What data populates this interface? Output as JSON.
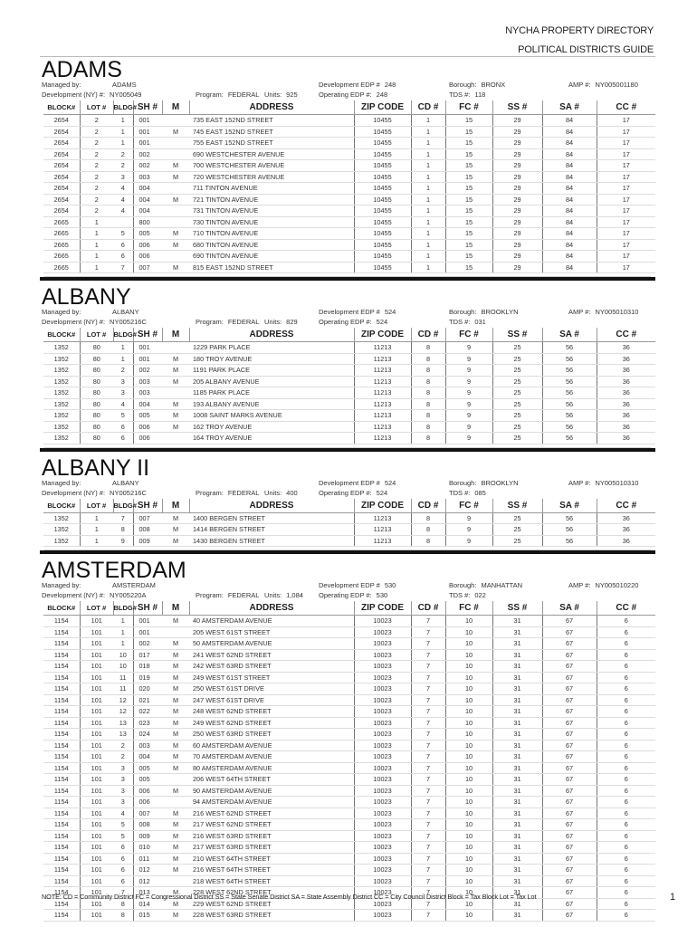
{
  "header": {
    "line1": "NYCHA PROPERTY DIRECTORY",
    "line2": "POLITICAL DISTRICTS GUIDE"
  },
  "labels": {
    "managed_by": "Managed by:",
    "dev_ny": "Development (NY) #:",
    "program": "Program:",
    "units": "Units:",
    "dev_edp": "Development EDP #",
    "op_edp": "Operating EDP #:",
    "borough": "Borough:",
    "tds": "TDS #:",
    "amp": "AMP #:"
  },
  "columns": [
    "BLOCK#",
    "LOT #",
    "BLDG#",
    "SH #",
    "M",
    "ADDRESS",
    "ZIP CODE",
    "CD #",
    "FC #",
    "SS #",
    "SA #",
    "CC #"
  ],
  "sections": [
    {
      "name": "ADAMS",
      "managed_by": "ADAMS",
      "dev_ny": "NY005049",
      "program": "FEDERAL",
      "units": "925",
      "dev_edp": "248",
      "op_edp": "248",
      "borough": "BRONX",
      "tds": "118",
      "amp": "NY005001180",
      "rows": [
        [
          "2654",
          "2",
          "1",
          "001",
          "",
          "735 EAST 152ND STREET",
          "10455",
          "1",
          "15",
          "29",
          "84",
          "17"
        ],
        [
          "2654",
          "2",
          "1",
          "001",
          "M",
          "745 EAST 152ND STREET",
          "10455",
          "1",
          "15",
          "29",
          "84",
          "17"
        ],
        [
          "2654",
          "2",
          "1",
          "001",
          "",
          "755 EAST 152ND STREET",
          "10455",
          "1",
          "15",
          "29",
          "84",
          "17"
        ],
        [
          "2654",
          "2",
          "2",
          "002",
          "",
          "690 WESTCHESTER AVENUE",
          "10455",
          "1",
          "15",
          "29",
          "84",
          "17"
        ],
        [
          "2654",
          "2",
          "2",
          "002",
          "M",
          "700 WESTCHESTER AVENUE",
          "10455",
          "1",
          "15",
          "29",
          "84",
          "17"
        ],
        [
          "2654",
          "2",
          "3",
          "003",
          "M",
          "720 WESTCHESTER AVENUE",
          "10455",
          "1",
          "15",
          "29",
          "84",
          "17"
        ],
        [
          "2654",
          "2",
          "4",
          "004",
          "",
          "711 TINTON AVENUE",
          "10455",
          "1",
          "15",
          "29",
          "84",
          "17"
        ],
        [
          "2654",
          "2",
          "4",
          "004",
          "M",
          "721 TINTON AVENUE",
          "10455",
          "1",
          "15",
          "29",
          "84",
          "17"
        ],
        [
          "2654",
          "2",
          "4",
          "004",
          "",
          "731 TINTON AVENUE",
          "10455",
          "1",
          "15",
          "29",
          "84",
          "17"
        ],
        [
          "2665",
          "1",
          "",
          "800",
          "",
          "730 TINTON AVENUE",
          "10455",
          "1",
          "15",
          "29",
          "84",
          "17"
        ],
        [
          "2665",
          "1",
          "5",
          "005",
          "M",
          "710 TINTON AVENUE",
          "10455",
          "1",
          "15",
          "29",
          "84",
          "17"
        ],
        [
          "2665",
          "1",
          "6",
          "006",
          "M",
          "680 TINTON AVENUE",
          "10455",
          "1",
          "15",
          "29",
          "84",
          "17"
        ],
        [
          "2665",
          "1",
          "6",
          "006",
          "",
          "690 TINTON AVENUE",
          "10455",
          "1",
          "15",
          "29",
          "84",
          "17"
        ],
        [
          "2665",
          "1",
          "7",
          "007",
          "M",
          "815 EAST 152ND STREET",
          "10455",
          "1",
          "15",
          "29",
          "84",
          "17"
        ]
      ]
    },
    {
      "name": "ALBANY",
      "managed_by": "ALBANY",
      "dev_ny": "NY005216C",
      "program": "FEDERAL",
      "units": "829",
      "dev_edp": "524",
      "op_edp": "524",
      "borough": "BROOKLYN",
      "tds": "031",
      "amp": "NY005010310",
      "rows": [
        [
          "1352",
          "80",
          "1",
          "001",
          "",
          "1229 PARK PLACE",
          "11213",
          "8",
          "9",
          "25",
          "56",
          "36"
        ],
        [
          "1352",
          "80",
          "1",
          "001",
          "M",
          "180 TROY AVENUE",
          "11213",
          "8",
          "9",
          "25",
          "56",
          "36"
        ],
        [
          "1352",
          "80",
          "2",
          "002",
          "M",
          "1191 PARK PLACE",
          "11213",
          "8",
          "9",
          "25",
          "56",
          "36"
        ],
        [
          "1352",
          "80",
          "3",
          "003",
          "M",
          "205 ALBANY AVENUE",
          "11213",
          "8",
          "9",
          "25",
          "56",
          "36"
        ],
        [
          "1352",
          "80",
          "3",
          "003",
          "",
          "1185 PARK PLACE",
          "11213",
          "8",
          "9",
          "25",
          "56",
          "36"
        ],
        [
          "1352",
          "80",
          "4",
          "004",
          "M",
          "193 ALBANY AVENUE",
          "11213",
          "8",
          "9",
          "25",
          "56",
          "36"
        ],
        [
          "1352",
          "80",
          "5",
          "005",
          "M",
          "1008 SAINT MARKS AVENUE",
          "11213",
          "8",
          "9",
          "25",
          "56",
          "36"
        ],
        [
          "1352",
          "80",
          "6",
          "006",
          "M",
          "162 TROY AVENUE",
          "11213",
          "8",
          "9",
          "25",
          "56",
          "36"
        ],
        [
          "1352",
          "80",
          "6",
          "006",
          "",
          "164 TROY AVENUE",
          "11213",
          "8",
          "9",
          "25",
          "56",
          "36"
        ]
      ]
    },
    {
      "name": "ALBANY II",
      "managed_by": "ALBANY",
      "dev_ny": "NY005216C",
      "program": "FEDERAL",
      "units": "400",
      "dev_edp": "524",
      "op_edp": "524",
      "borough": "BROOKLYN",
      "tds": "085",
      "amp": "NY005010310",
      "rows": [
        [
          "1352",
          "1",
          "7",
          "007",
          "M",
          "1400 BERGEN STREET",
          "11213",
          "8",
          "9",
          "25",
          "56",
          "36"
        ],
        [
          "1352",
          "1",
          "8",
          "008",
          "M",
          "1414 BERGEN STREET",
          "11213",
          "8",
          "9",
          "25",
          "56",
          "36"
        ],
        [
          "1352",
          "1",
          "9",
          "009",
          "M",
          "1430 BERGEN STREET",
          "11213",
          "8",
          "9",
          "25",
          "56",
          "36"
        ]
      ]
    },
    {
      "name": "AMSTERDAM",
      "managed_by": "AMSTERDAM",
      "dev_ny": "NY005220A",
      "program": "FEDERAL",
      "units": "1,084",
      "dev_edp": "530",
      "op_edp": "530",
      "borough": "MANHATTAN",
      "tds": "022",
      "amp": "NY005010220",
      "rows": [
        [
          "1154",
          "101",
          "1",
          "001",
          "M",
          "40 AMSTERDAM AVENUE",
          "10023",
          "7",
          "10",
          "31",
          "67",
          "6"
        ],
        [
          "1154",
          "101",
          "1",
          "001",
          "",
          "205 WEST 61ST STREET",
          "10023",
          "7",
          "10",
          "31",
          "67",
          "6"
        ],
        [
          "1154",
          "101",
          "1",
          "002",
          "M",
          "50 AMSTERDAM AVENUE",
          "10023",
          "7",
          "10",
          "31",
          "67",
          "6"
        ],
        [
          "1154",
          "101",
          "10",
          "017",
          "M",
          "241 WEST 62ND STREET",
          "10023",
          "7",
          "10",
          "31",
          "67",
          "6"
        ],
        [
          "1154",
          "101",
          "10",
          "018",
          "M",
          "242 WEST 63RD STREET",
          "10023",
          "7",
          "10",
          "31",
          "67",
          "6"
        ],
        [
          "1154",
          "101",
          "11",
          "019",
          "M",
          "249 WEST 61ST STREET",
          "10023",
          "7",
          "10",
          "31",
          "67",
          "6"
        ],
        [
          "1154",
          "101",
          "11",
          "020",
          "M",
          "250 WEST 61ST DRIVE",
          "10023",
          "7",
          "10",
          "31",
          "67",
          "6"
        ],
        [
          "1154",
          "101",
          "12",
          "021",
          "M",
          "247 WEST 61ST DRIVE",
          "10023",
          "7",
          "10",
          "31",
          "67",
          "6"
        ],
        [
          "1154",
          "101",
          "12",
          "022",
          "M",
          "248 WEST 62ND STREET",
          "10023",
          "7",
          "10",
          "31",
          "67",
          "6"
        ],
        [
          "1154",
          "101",
          "13",
          "023",
          "M",
          "249 WEST 62ND STREET",
          "10023",
          "7",
          "10",
          "31",
          "67",
          "6"
        ],
        [
          "1154",
          "101",
          "13",
          "024",
          "M",
          "250 WEST 63RD STREET",
          "10023",
          "7",
          "10",
          "31",
          "67",
          "6"
        ],
        [
          "1154",
          "101",
          "2",
          "003",
          "M",
          "60 AMSTERDAM AVENUE",
          "10023",
          "7",
          "10",
          "31",
          "67",
          "6"
        ],
        [
          "1154",
          "101",
          "2",
          "004",
          "M",
          "70 AMSTERDAM AVENUE",
          "10023",
          "7",
          "10",
          "31",
          "67",
          "6"
        ],
        [
          "1154",
          "101",
          "3",
          "005",
          "M",
          "80 AMSTERDAM AVENUE",
          "10023",
          "7",
          "10",
          "31",
          "67",
          "6"
        ],
        [
          "1154",
          "101",
          "3",
          "005",
          "",
          "206 WEST 64TH STREET",
          "10023",
          "7",
          "10",
          "31",
          "67",
          "6"
        ],
        [
          "1154",
          "101",
          "3",
          "006",
          "M",
          "90 AMSTERDAM AVENUE",
          "10023",
          "7",
          "10",
          "31",
          "67",
          "6"
        ],
        [
          "1154",
          "101",
          "3",
          "006",
          "",
          "94 AMSTERDAM AVENUE",
          "10023",
          "7",
          "10",
          "31",
          "67",
          "6"
        ],
        [
          "1154",
          "101",
          "4",
          "007",
          "M",
          "216 WEST 62ND STREET",
          "10023",
          "7",
          "10",
          "31",
          "67",
          "6"
        ],
        [
          "1154",
          "101",
          "5",
          "008",
          "M",
          "217 WEST 62ND STREET",
          "10023",
          "7",
          "10",
          "31",
          "67",
          "6"
        ],
        [
          "1154",
          "101",
          "5",
          "009",
          "M",
          "216 WEST 63RD STREET",
          "10023",
          "7",
          "10",
          "31",
          "67",
          "6"
        ],
        [
          "1154",
          "101",
          "6",
          "010",
          "M",
          "217 WEST 63RD STREET",
          "10023",
          "7",
          "10",
          "31",
          "67",
          "6"
        ],
        [
          "1154",
          "101",
          "6",
          "011",
          "M",
          "210 WEST 64TH STREET",
          "10023",
          "7",
          "10",
          "31",
          "67",
          "6"
        ],
        [
          "1154",
          "101",
          "6",
          "012",
          "M",
          "216 WEST 64TH STREET",
          "10023",
          "7",
          "10",
          "31",
          "67",
          "6"
        ],
        [
          "1154",
          "101",
          "6",
          "012",
          "",
          "218 WEST 64TH STREET",
          "10023",
          "7",
          "10",
          "31",
          "67",
          "6"
        ],
        [
          "1154",
          "101",
          "7",
          "013",
          "M",
          "228 WEST 62ND STREET",
          "10023",
          "7",
          "10",
          "31",
          "67",
          "6"
        ],
        [
          "1154",
          "101",
          "8",
          "014",
          "M",
          "229 WEST 62ND STREET",
          "10023",
          "7",
          "10",
          "31",
          "67",
          "6"
        ],
        [
          "1154",
          "101",
          "8",
          "015",
          "M",
          "228 WEST 63RD STREET",
          "10023",
          "7",
          "10",
          "31",
          "67",
          "6"
        ]
      ]
    }
  ],
  "footer": {
    "note": "NOTE:   CD = Community District  FC = Congressional District    SS = State Senate District   SA = State Assembly District   CC = City Council District    Block = Tax Block  Lot = Tax Lot",
    "page_number": "1"
  }
}
